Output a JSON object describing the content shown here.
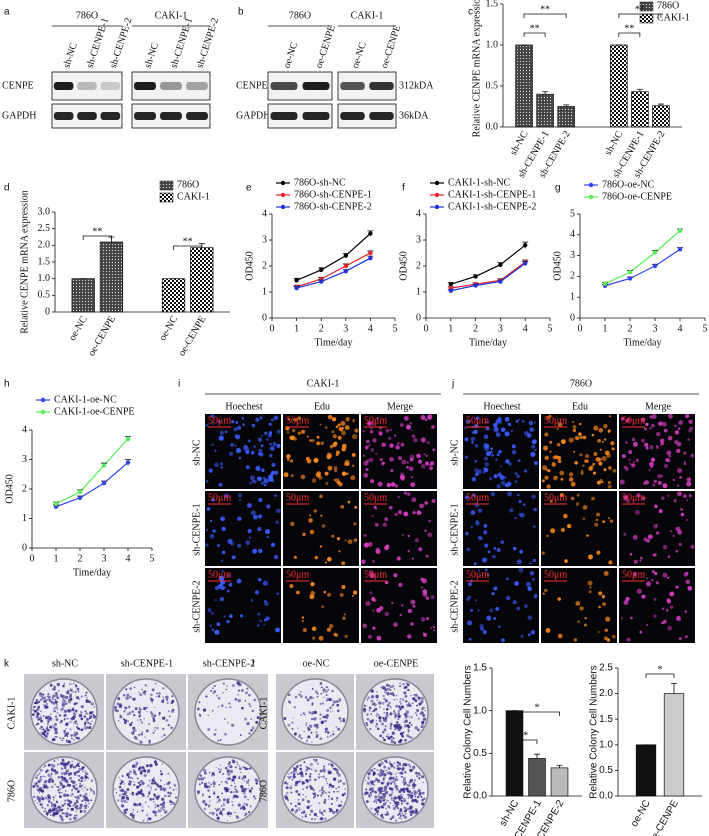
{
  "panel_labels": [
    "a",
    "b",
    "c",
    "d",
    "e",
    "f",
    "g",
    "h",
    "i",
    "j",
    "k",
    "l"
  ],
  "blots": [
    {
      "groups": [
        {
          "name": "786O",
          "lanes": [
            "sh-NC",
            "sh-CENPE-1",
            "sh-CENPE-2"
          ]
        },
        {
          "name": "CAKI-1",
          "lanes": [
            "sh-NC",
            "sh-CENPE-1",
            "sh-CENPE-2"
          ]
        }
      ],
      "rows": [
        "CENPE",
        "GAPDH"
      ]
    },
    {
      "groups": [
        {
          "name": "786O",
          "lanes": [
            "oe-NC",
            "oe-CENPE"
          ]
        },
        {
          "name": "CAKI-1",
          "lanes": [
            "oe-NC",
            "oe-CENPE"
          ]
        }
      ],
      "rows": [
        "CENPE",
        "GAPDH"
      ],
      "sizes": [
        "312kDA",
        "36kDA"
      ]
    }
  ],
  "chart_data": [
    {
      "type": "bar",
      "ylabel": "Relative CENPE mRNA expression",
      "categories": [
        "sh-NC",
        "sh-CENPE-1",
        "sh-CENPE-2",
        "sh-NC",
        "sh-CENPE-1",
        "sh-CENPE-2"
      ],
      "series": [
        {
          "name": "786O",
          "color": "#444444",
          "values": [
            1.0,
            0.4,
            0.25,
            null,
            null,
            null
          ],
          "errors": [
            0,
            0.03,
            0.02,
            null,
            null,
            null
          ]
        },
        {
          "name": "CAKI-1",
          "color": "#111111",
          "values": [
            null,
            null,
            null,
            1.0,
            0.43,
            0.26
          ],
          "errors": [
            null,
            null,
            null,
            0,
            0.03,
            0.02
          ]
        }
      ],
      "ylim": [
        0,
        1.5
      ],
      "yticks": [
        {
          "value": 0,
          "label": "0.0"
        },
        0.5,
        {
          "value": 1,
          "label": "1.0"
        },
        1.5
      ],
      "annotations": [
        "**",
        "**",
        "**",
        "**"
      ],
      "legend": "upper right"
    },
    {
      "type": "bar",
      "ylabel": "Relative CENPE mRNA expression",
      "categories": [
        "oe-NC",
        "oe-CENPE",
        "oe-NC",
        "oe-CENPE"
      ],
      "series": [
        {
          "name": "786O",
          "color": "#444444",
          "values": [
            1.0,
            2.1,
            null,
            null
          ],
          "errors": [
            0,
            0.15,
            null,
            null
          ]
        },
        {
          "name": "CAKI-1",
          "color": "#111111",
          "values": [
            null,
            null,
            1.0,
            1.93
          ],
          "errors": [
            null,
            null,
            0,
            0.12
          ]
        }
      ],
      "ylim": [
        0,
        3
      ],
      "yticks": [
        0,
        0.5,
        {
          "value": 1,
          "label": "1.0"
        },
        1.5,
        {
          "value": 2,
          "label": "2.0"
        },
        2.5,
        {
          "value": 3,
          "label": "3.0"
        }
      ],
      "annotations": [
        "**",
        "**"
      ],
      "legend": "upper right"
    },
    {
      "type": "line",
      "xlabel": "Time/day",
      "ylabel": "OD450",
      "x": [
        1,
        2,
        3,
        4
      ],
      "xlim": [
        0,
        5
      ],
      "xticks": [
        0,
        1,
        2,
        3,
        4,
        5
      ],
      "ylim": [
        0,
        4
      ],
      "yticks": [
        0,
        1,
        2,
        3,
        4
      ],
      "series": [
        {
          "name": "786O-sh-NC",
          "color": "#000000",
          "values": [
            1.45,
            1.85,
            2.4,
            3.25
          ],
          "errors": [
            0.08,
            0.08,
            0.08,
            0.1
          ]
        },
        {
          "name": "786O-sh-CENPE-1",
          "color": "#e8202a",
          "values": [
            1.2,
            1.5,
            2.0,
            2.5
          ],
          "errors": [
            0.06,
            0.06,
            0.08,
            0.08
          ]
        },
        {
          "name": "786O-sh-CENPE-2",
          "color": "#2233dd",
          "values": [
            1.15,
            1.4,
            1.8,
            2.3
          ],
          "errors": [
            0.06,
            0.06,
            0.06,
            0.08
          ]
        }
      ],
      "legend": "upper left"
    },
    {
      "type": "line",
      "xlabel": "Time/day",
      "ylabel": "OD450",
      "x": [
        1,
        2,
        3,
        4
      ],
      "xlim": [
        0,
        5
      ],
      "xticks": [
        0,
        1,
        2,
        3,
        4,
        5
      ],
      "ylim": [
        0,
        4
      ],
      "yticks": [
        0,
        1,
        2,
        3,
        4
      ],
      "series": [
        {
          "name": "CAKI-1-sh-NC",
          "color": "#000000",
          "values": [
            1.3,
            1.6,
            2.05,
            2.8
          ],
          "errors": [
            0.06,
            0.06,
            0.08,
            0.12
          ]
        },
        {
          "name": "CAKI-1-sh-CENPE-1",
          "color": "#e8202a",
          "values": [
            1.15,
            1.3,
            1.45,
            2.15
          ],
          "errors": [
            0.05,
            0.05,
            0.06,
            0.08
          ]
        },
        {
          "name": "CAKI-1-sh-CENPE-2",
          "color": "#2233dd",
          "values": [
            1.05,
            1.25,
            1.4,
            2.1
          ],
          "errors": [
            0.05,
            0.05,
            0.06,
            0.08
          ]
        }
      ],
      "legend": "upper left"
    },
    {
      "type": "line",
      "xlabel": "Time/day",
      "ylabel": "OD450",
      "x": [
        1,
        2,
        3,
        4
      ],
      "xlim": [
        0,
        5
      ],
      "xticks": [
        0,
        1,
        2,
        3,
        4,
        5
      ],
      "ylim": [
        0,
        5
      ],
      "yticks": [
        0,
        1,
        2,
        3,
        4,
        5
      ],
      "series": [
        {
          "name": "786O-oe-NC",
          "color": "#3344ee",
          "values": [
            1.55,
            1.9,
            2.5,
            3.3
          ],
          "errors": [
            0.07,
            0.07,
            0.08,
            0.08
          ]
        },
        {
          "name": "786O-oe-CENPE",
          "color": "#55ee55",
          "values": [
            1.65,
            2.2,
            3.15,
            4.2
          ],
          "errors": [
            0.07,
            0.08,
            0.1,
            0.08
          ]
        }
      ],
      "legend": "upper left"
    },
    {
      "type": "line",
      "xlabel": "Time/day",
      "ylabel": "OD450",
      "x": [
        1,
        2,
        3,
        4
      ],
      "xlim": [
        0,
        5
      ],
      "xticks": [
        0,
        1,
        2,
        3,
        4,
        5
      ],
      "ylim": [
        0,
        4
      ],
      "yticks": [
        0,
        1,
        2,
        3,
        4
      ],
      "series": [
        {
          "name": "CAKI-1-oe-NC",
          "color": "#3344ee",
          "values": [
            1.4,
            1.7,
            2.2,
            2.9
          ],
          "errors": [
            0.06,
            0.06,
            0.07,
            0.1
          ]
        },
        {
          "name": "CAKI-1-oe-CENPE",
          "color": "#55ee55",
          "values": [
            1.5,
            1.9,
            2.8,
            3.7
          ],
          "errors": [
            0.06,
            0.07,
            0.08,
            0.08
          ]
        }
      ],
      "legend": "upper left"
    },
    {
      "type": "bar",
      "ylabel": "Relative Colony Cell Numbers",
      "categories": [
        "sh-NC",
        "sh-CENPE-1",
        "sh-CENPE-2"
      ],
      "values": [
        1.0,
        0.44,
        0.33
      ],
      "errors": [
        0,
        0.05,
        0.03
      ],
      "colors": [
        "#111111",
        "#555555",
        "#bbbbbb"
      ],
      "ylim": [
        0,
        1.5
      ],
      "yticks": [
        {
          "value": 0,
          "label": "0.0"
        },
        0.5,
        {
          "value": 1,
          "label": "1.0"
        },
        1.5
      ],
      "annotations": [
        "*",
        "*"
      ]
    },
    {
      "type": "bar",
      "ylabel": "Relative Colony Cell Numbers",
      "categories": [
        "oe-NC",
        "oe-CENPE"
      ],
      "values": [
        1.0,
        2.0
      ],
      "errors": [
        0,
        0.2
      ],
      "colors": [
        "#111111",
        "#cccccc"
      ],
      "ylim": [
        0,
        2.5
      ],
      "yticks": [
        {
          "value": 0,
          "label": "0.0"
        },
        0.5,
        {
          "value": 1,
          "label": "1.0"
        },
        1.5,
        {
          "value": 2,
          "label": "2.0"
        },
        2.5
      ],
      "annotations": [
        "*"
      ]
    }
  ],
  "edu": [
    {
      "title": "CAKI-1",
      "columns": [
        "Hoechest",
        "Edu",
        "Merge"
      ],
      "rows": [
        "sh-NC",
        "sh-CENPE-1",
        "sh-CENPE-2"
      ],
      "scale_bar": "50μm"
    },
    {
      "title": "786O",
      "columns": [
        "Hoechest",
        "Edu",
        "Merge"
      ],
      "rows": [
        "sh-NC",
        "sh-CENPE-1",
        "sh-CENPE-2"
      ],
      "scale_bar": "50μm"
    }
  ],
  "colony": [
    {
      "columns": [
        "sh-NC",
        "sh-CENPE-1",
        "sh-CENPE-2"
      ],
      "rows": [
        "CAKI-1",
        "786O"
      ]
    },
    {
      "columns": [
        "oe-NC",
        "oe-CENPE"
      ],
      "rows": [
        "CAKI-1",
        "786O"
      ]
    }
  ]
}
